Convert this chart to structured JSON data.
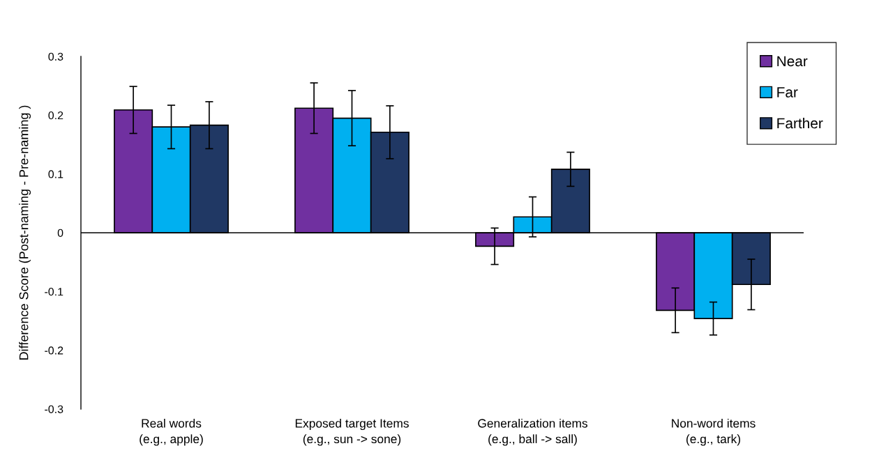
{
  "chart_data": {
    "type": "bar",
    "ylabel": "Difference Score (Post-naming - Pre-naming )",
    "categories": [
      "Real words\n(e.g., apple)",
      "Exposed target Items\n(e.g., sun -> sone)",
      "Generalization items\n(e.g., ball -> sall)",
      "Non-word items\n(e.g., tark)"
    ],
    "series": [
      {
        "name": "Near",
        "color": "#7030a0",
        "values": [
          0.209,
          0.212,
          -0.023,
          -0.132
        ],
        "errors": [
          0.04,
          0.043,
          0.031,
          0.038
        ]
      },
      {
        "name": "Far",
        "color": "#00b0f0",
        "values": [
          0.18,
          0.195,
          0.027,
          -0.146
        ],
        "errors": [
          0.037,
          0.047,
          0.034,
          0.028
        ]
      },
      {
        "name": "Farther",
        "color": "#203864",
        "values": [
          0.183,
          0.171,
          0.108,
          -0.088
        ],
        "errors": [
          0.04,
          0.045,
          0.029,
          0.043
        ]
      }
    ],
    "ylim": [
      -0.3,
      0.3
    ],
    "yticks": [
      -0.3,
      -0.2,
      -0.1,
      0,
      0.1,
      0.2,
      0.3
    ],
    "legend": "top right"
  }
}
